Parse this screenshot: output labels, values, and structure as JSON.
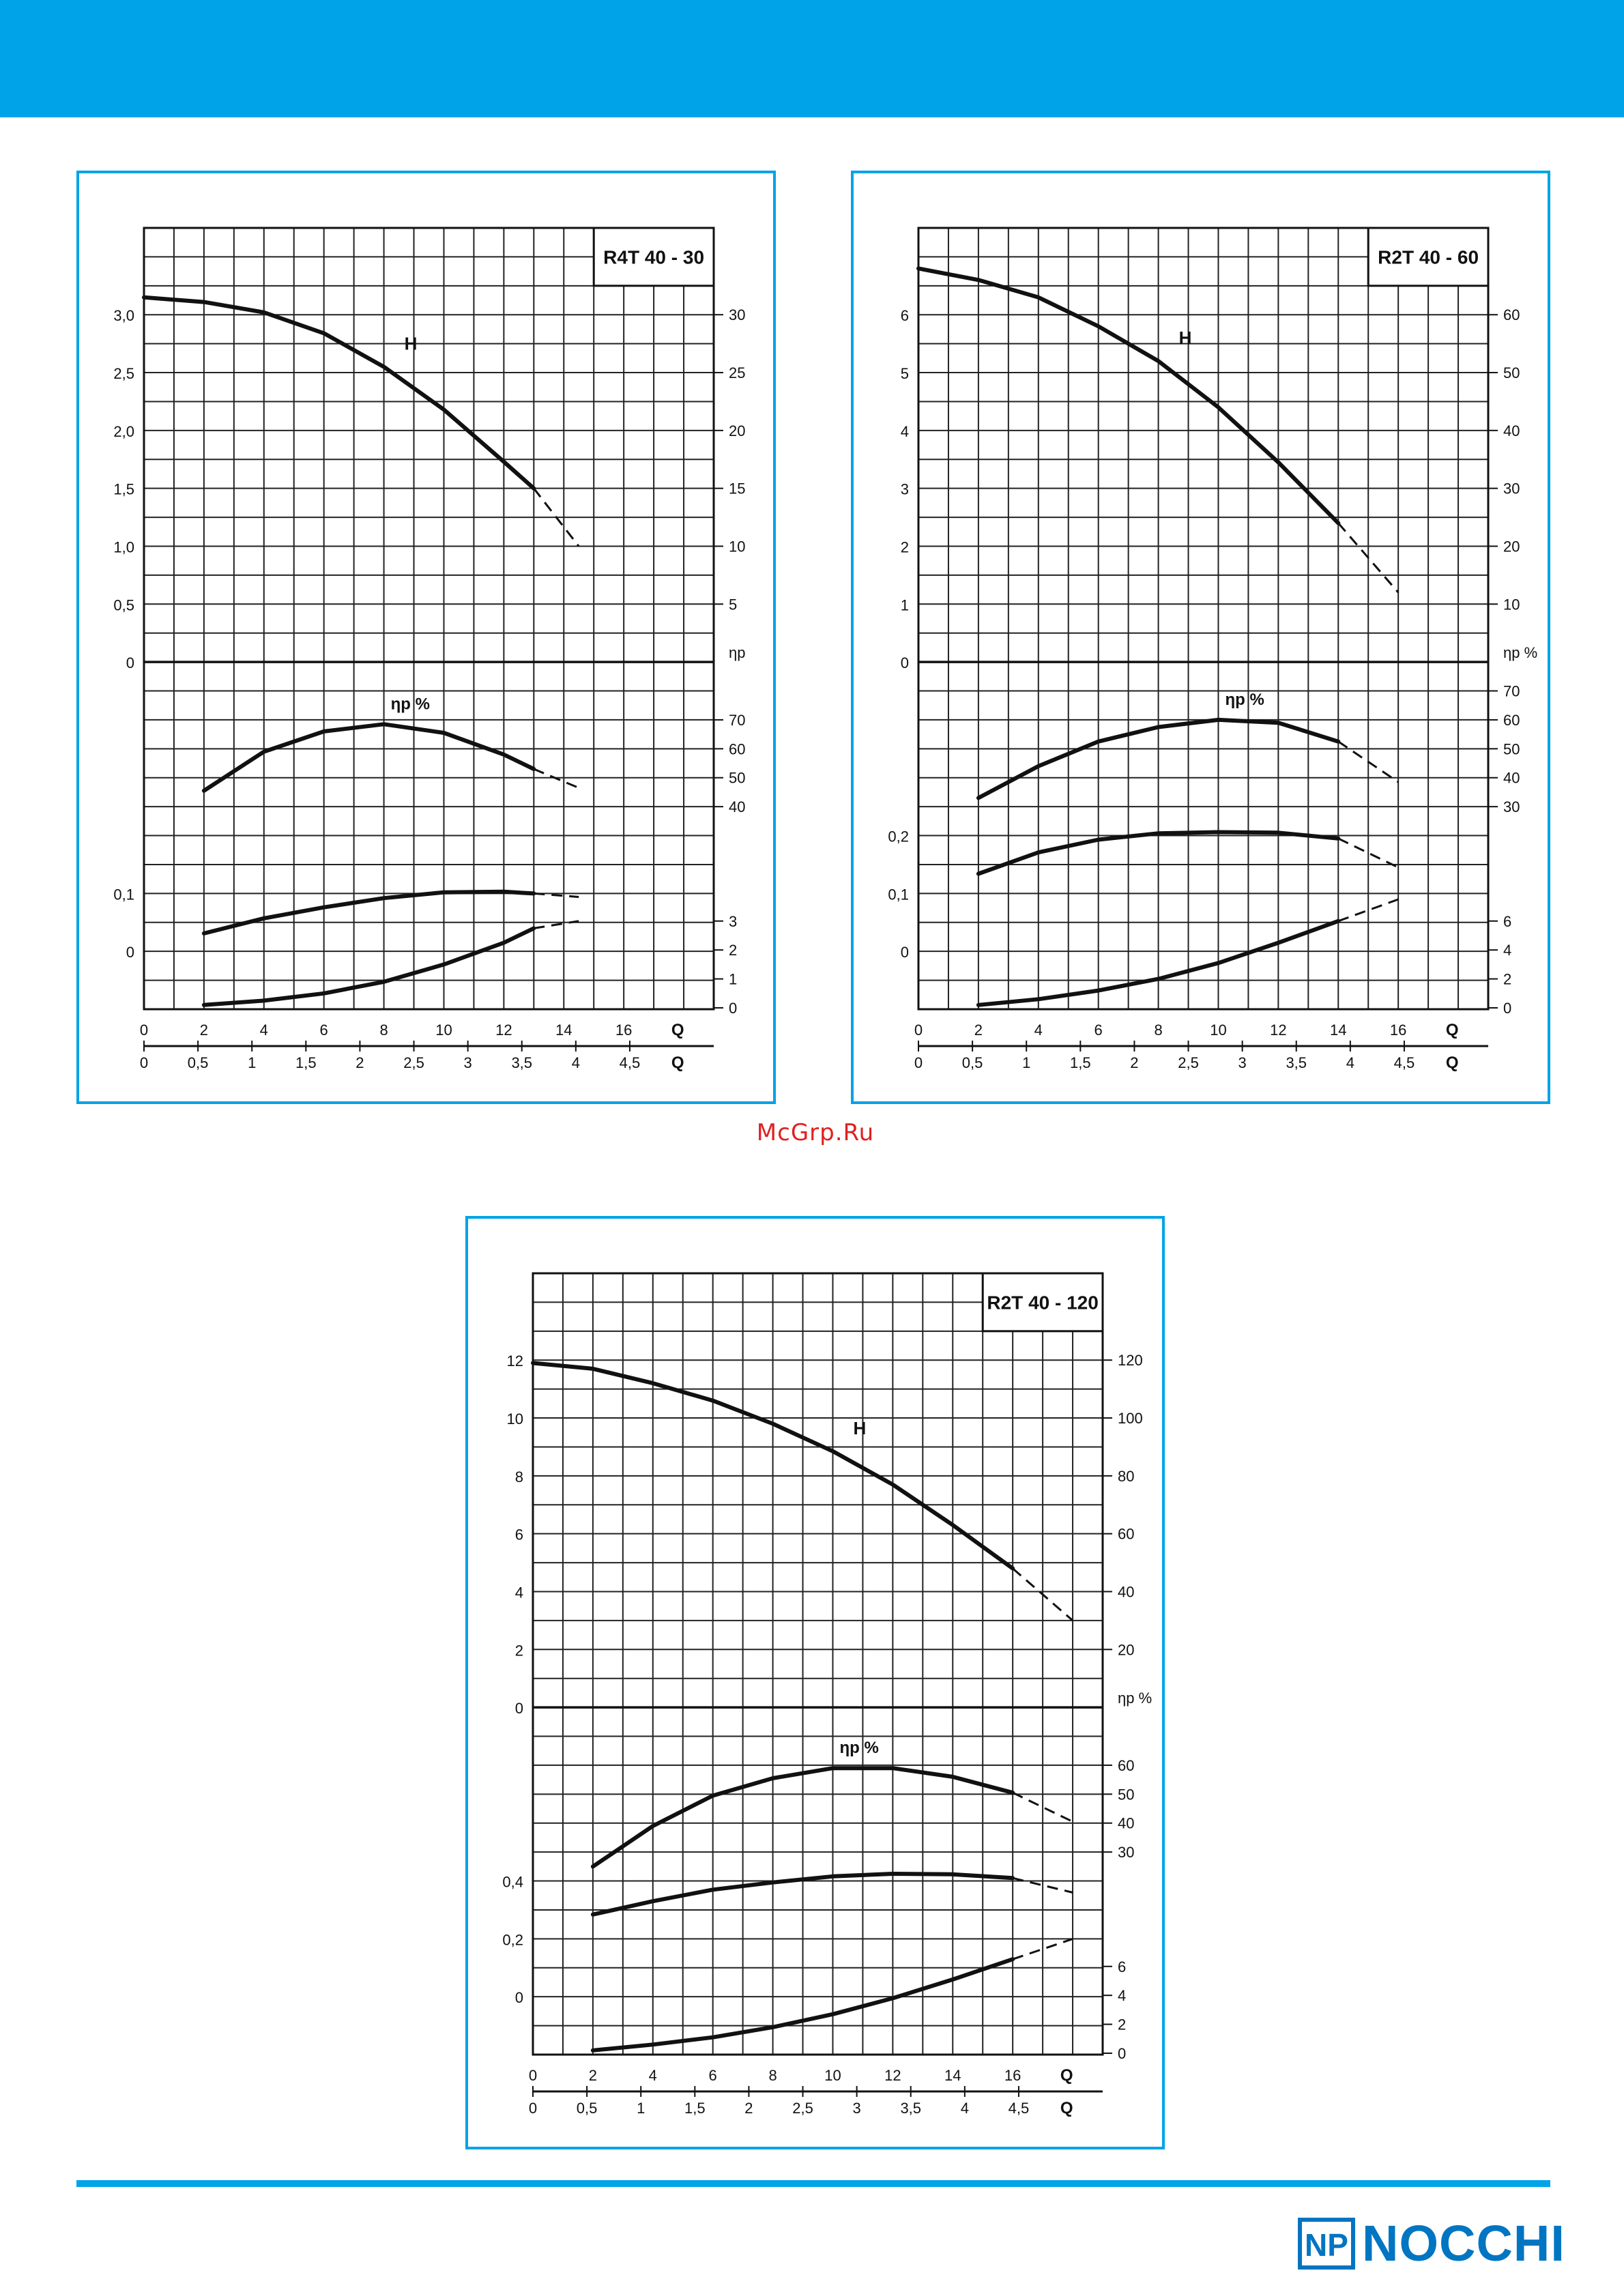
{
  "watermark": "McGrp.Ru",
  "brand": {
    "name": "NOCCHI",
    "logo_letters": "NP",
    "color": "#0075c2",
    "bar_color": "#00a3e8"
  },
  "chart_data": [
    {
      "type": "line",
      "title": "R4T 40 - 30",
      "x_top": {
        "label": "Q",
        "ticks": [
          "0",
          "2",
          "4",
          "6",
          "8",
          "10",
          "12",
          "14",
          "16"
        ],
        "range": [
          0,
          19
        ]
      },
      "x_bottom": {
        "label": "Q",
        "ticks": [
          "0",
          "0,5",
          "1",
          "1,5",
          "2",
          "2,5",
          "3",
          "3,5",
          "4",
          "4,5"
        ],
        "tick_values": [
          0,
          0.5,
          1,
          1.5,
          2,
          2.5,
          3,
          3.5,
          4,
          4.5
        ]
      },
      "head_left_ticks": [
        "0",
        "0,5",
        "1,0",
        "1,5",
        "2,0",
        "2,5",
        "3,0"
      ],
      "head_right_ticks": [
        "5",
        "10",
        "15",
        "20",
        "25",
        "30"
      ],
      "head_range": [
        0,
        3.75
      ],
      "eff_right_ticks": [
        "40",
        "50",
        "60",
        "70"
      ],
      "eff_axis_label": "ηp",
      "eff_curve_label": "ηp %",
      "power_left_ticks": [
        "0",
        "0,1"
      ],
      "npsh_right_ticks": [
        "0",
        "1",
        "2",
        "3"
      ],
      "head_label": "H",
      "series": {
        "head": {
          "x": [
            0,
            2,
            4,
            6,
            8,
            10,
            12,
            13,
            14.5
          ],
          "y": [
            3.15,
            3.11,
            3.02,
            2.84,
            2.55,
            2.18,
            1.73,
            1.5,
            1.0
          ],
          "solid_until": 13
        },
        "efficiency": {
          "x": [
            2,
            4,
            6,
            8,
            10,
            12,
            13,
            14.5
          ],
          "y": [
            45.5,
            59,
            66,
            68.5,
            65.5,
            58,
            53,
            46.5
          ],
          "solid_until": 13
        },
        "power": {
          "x": [
            2,
            4,
            6,
            8,
            10,
            12,
            13,
            14.5
          ],
          "y": [
            0.031,
            0.057,
            0.076,
            0.092,
            0.102,
            0.103,
            0.1,
            0.094
          ],
          "solid_until": 13
        },
        "npsh": {
          "x": [
            2,
            4,
            6,
            8,
            10,
            12,
            13,
            14.5
          ],
          "y": [
            0.1,
            0.25,
            0.5,
            0.9,
            1.5,
            2.25,
            2.75,
            3.0
          ],
          "solid_until": 13
        }
      }
    },
    {
      "type": "line",
      "title": "R2T 40 - 60",
      "x_top": {
        "label": "Q",
        "ticks": [
          "0",
          "2",
          "4",
          "6",
          "8",
          "10",
          "12",
          "14",
          "16"
        ],
        "range": [
          0,
          19
        ]
      },
      "x_bottom": {
        "label": "Q",
        "ticks": [
          "0",
          "0,5",
          "1",
          "1,5",
          "2",
          "2,5",
          "3",
          "3,5",
          "4",
          "4,5"
        ],
        "tick_values": [
          0,
          0.5,
          1,
          1.5,
          2,
          2.5,
          3,
          3.5,
          4,
          4.5
        ]
      },
      "head_left_ticks": [
        "0",
        "1",
        "2",
        "3",
        "4",
        "5",
        "6"
      ],
      "head_right_ticks": [
        "10",
        "20",
        "30",
        "40",
        "50",
        "60"
      ],
      "head_range": [
        0,
        7.5
      ],
      "eff_right_ticks": [
        "30",
        "40",
        "50",
        "60",
        "70"
      ],
      "eff_axis_label": "ηp %",
      "eff_curve_label": "ηp %",
      "power_left_ticks": [
        "0",
        "0,1",
        "0,2"
      ],
      "npsh_right_ticks": [
        "0",
        "2",
        "4",
        "6"
      ],
      "head_label": "H",
      "series": {
        "head": {
          "x": [
            0,
            2,
            4,
            6,
            8,
            10,
            12,
            14,
            16
          ],
          "y": [
            6.8,
            6.6,
            6.3,
            5.8,
            5.2,
            4.4,
            3.45,
            2.4,
            1.2
          ],
          "solid_until": 14
        },
        "efficiency": {
          "x": [
            2,
            4,
            6,
            8,
            10,
            12,
            14,
            16
          ],
          "y": [
            33,
            44,
            52.5,
            57.5,
            60,
            59,
            52.5,
            38.5
          ],
          "solid_until": 14
        },
        "power": {
          "x": [
            2,
            4,
            6,
            8,
            10,
            12,
            14,
            16
          ],
          "y": [
            0.134,
            0.171,
            0.193,
            0.204,
            0.206,
            0.205,
            0.195,
            0.145
          ],
          "solid_until": 14
        },
        "npsh": {
          "x": [
            2,
            4,
            6,
            8,
            10,
            12,
            14,
            16
          ],
          "y": [
            0.2,
            0.6,
            1.2,
            2.0,
            3.1,
            4.5,
            6.0,
            7.5
          ],
          "solid_until": 14
        }
      }
    },
    {
      "type": "line",
      "title": "R2T 40 - 120",
      "x_top": {
        "label": "Q",
        "ticks": [
          "0",
          "2",
          "4",
          "6",
          "8",
          "10",
          "12",
          "14",
          "16"
        ],
        "range": [
          0,
          19
        ]
      },
      "x_bottom": {
        "label": "Q",
        "ticks": [
          "0",
          "0,5",
          "1",
          "1,5",
          "2",
          "2,5",
          "3",
          "3,5",
          "4",
          "4,5"
        ],
        "tick_values": [
          0,
          0.5,
          1,
          1.5,
          2,
          2.5,
          3,
          3.5,
          4,
          4.5
        ]
      },
      "head_left_ticks": [
        "0",
        "2",
        "4",
        "6",
        "8",
        "10",
        "12"
      ],
      "head_right_ticks": [
        "20",
        "40",
        "60",
        "80",
        "100",
        "120"
      ],
      "head_range": [
        0,
        15
      ],
      "eff_right_ticks": [
        "30",
        "40",
        "50",
        "60"
      ],
      "eff_axis_label": "ηp %",
      "eff_curve_label": "ηp %",
      "power_left_ticks": [
        "0",
        "0,2",
        "0,4"
      ],
      "npsh_right_ticks": [
        "0",
        "2",
        "4",
        "6"
      ],
      "head_label": "H",
      "series": {
        "head": {
          "x": [
            0,
            2,
            4,
            6,
            8,
            10,
            12,
            14,
            16,
            18
          ],
          "y": [
            11.9,
            11.7,
            11.2,
            10.6,
            9.8,
            8.85,
            7.7,
            6.3,
            4.8,
            3.0
          ],
          "solid_until": 16
        },
        "efficiency": {
          "x": [
            2,
            4,
            6,
            8,
            10,
            12,
            14,
            16,
            18
          ],
          "y": [
            25,
            39,
            49.5,
            55.5,
            59,
            59,
            56,
            50.5,
            40.5
          ],
          "solid_until": 16
        },
        "power": {
          "x": [
            2,
            4,
            6,
            8,
            10,
            12,
            14,
            16,
            18
          ],
          "y": [
            0.284,
            0.33,
            0.37,
            0.395,
            0.416,
            0.425,
            0.423,
            0.41,
            0.36
          ],
          "solid_until": 16
        },
        "npsh": {
          "x": [
            2,
            4,
            6,
            8,
            10,
            12,
            14,
            16,
            18
          ],
          "y": [
            0.2,
            0.6,
            1.1,
            1.8,
            2.7,
            3.8,
            5.1,
            6.5,
            7.9
          ],
          "solid_until": 16
        }
      }
    }
  ]
}
